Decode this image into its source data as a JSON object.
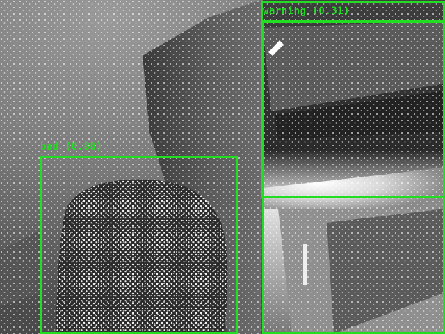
{
  "detections": [
    {
      "label": "bad (0.88)"
    },
    {
      "label": "warning (0.31)"
    }
  ],
  "colors": {
    "box_stroke": "#22dd22",
    "label_text": "#22dd22"
  },
  "image": {
    "kind": "grayscale infrared depth-camera frame with dot projection pattern"
  }
}
